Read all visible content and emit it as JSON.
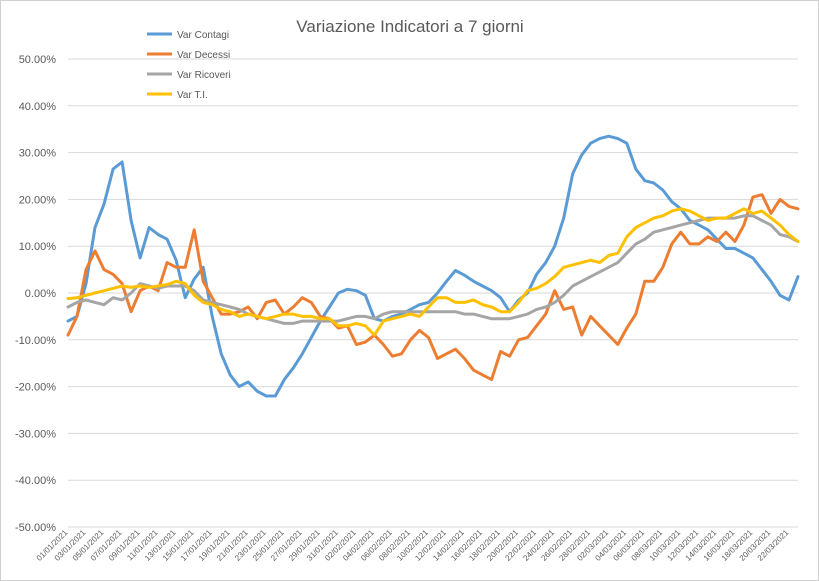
{
  "chart_data": {
    "type": "line",
    "title": "Variazione Indicatori a 7 giorni",
    "xlabel": "",
    "ylabel": "",
    "ylim": [
      -0.5,
      0.5
    ],
    "yticks": [
      0.5,
      0.4,
      0.3,
      0.2,
      0.1,
      0.0,
      -0.1,
      -0.2,
      -0.3,
      -0.4,
      -0.5
    ],
    "ytick_labels": [
      "50.00%",
      "40.00%",
      "30.00%",
      "20.00%",
      "10.00%",
      "0.00%",
      "-10.00%",
      "-20.00%",
      "-30.00%",
      "-40.00%",
      "-50.00%"
    ],
    "grid": true,
    "legend_position": "top-left",
    "x_tick_labels": [
      "01/01/2021",
      "03/01/2021",
      "05/01/2021",
      "07/01/2021",
      "09/01/2021",
      "11/01/2021",
      "13/01/2021",
      "15/01/2021",
      "17/01/2021",
      "19/01/2021",
      "21/01/2021",
      "23/01/2021",
      "25/01/2021",
      "27/01/2021",
      "29/01/2021",
      "31/01/2021",
      "02/02/2021",
      "04/02/2021",
      "06/02/2021",
      "08/02/2021",
      "10/02/2021",
      "12/02/2021",
      "14/02/2021",
      "16/02/2021",
      "18/02/2021",
      "20/02/2021",
      "22/02/2021",
      "24/02/2021",
      "26/02/2021",
      "28/02/2021",
      "02/03/2021",
      "04/03/2021",
      "06/03/2021",
      "08/03/2021",
      "10/03/2021",
      "12/03/2021",
      "14/03/2021",
      "16/03/2021",
      "18/03/2021",
      "20/03/2021",
      "22/03/2021"
    ],
    "series": [
      {
        "name": "Var Contagi",
        "color": "#5B9BD5",
        "values": [
          -0.06,
          -0.05,
          0.02,
          0.14,
          0.19,
          0.265,
          0.28,
          0.155,
          0.075,
          0.14,
          0.125,
          0.115,
          0.07,
          -0.01,
          0.03,
          0.055,
          -0.05,
          -0.13,
          -0.175,
          -0.2,
          -0.19,
          -0.21,
          -0.22,
          -0.22,
          -0.185,
          -0.16,
          -0.13,
          -0.095,
          -0.06,
          -0.03,
          0.0,
          0.008,
          0.005,
          -0.005,
          -0.055,
          -0.06,
          -0.05,
          -0.045,
          -0.035,
          -0.025,
          -0.02,
          0.0,
          0.025,
          0.048,
          0.038,
          0.025,
          0.015,
          0.005,
          -0.01,
          -0.04,
          -0.015,
          0.0,
          0.04,
          0.065,
          0.1,
          0.16,
          0.255,
          0.295,
          0.32,
          0.33,
          0.335,
          0.33,
          0.32,
          0.265,
          0.24,
          0.235,
          0.22,
          0.195,
          0.18,
          0.155,
          0.145,
          0.135,
          0.115,
          0.095,
          0.095,
          0.085,
          0.075,
          0.05,
          0.025,
          -0.005,
          -0.015,
          0.035
        ]
      },
      {
        "name": "Var Decessi",
        "color": "#ED7D31",
        "values": [
          -0.09,
          -0.05,
          0.05,
          0.09,
          0.05,
          0.04,
          0.02,
          -0.04,
          0.005,
          0.015,
          0.005,
          0.065,
          0.055,
          0.055,
          0.135,
          0.025,
          -0.01,
          -0.045,
          -0.045,
          -0.04,
          -0.03,
          -0.055,
          -0.02,
          -0.015,
          -0.045,
          -0.03,
          -0.01,
          -0.02,
          -0.05,
          -0.055,
          -0.075,
          -0.07,
          -0.11,
          -0.105,
          -0.09,
          -0.11,
          -0.135,
          -0.13,
          -0.1,
          -0.08,
          -0.095,
          -0.14,
          -0.13,
          -0.12,
          -0.14,
          -0.165,
          -0.175,
          -0.185,
          -0.125,
          -0.135,
          -0.1,
          -0.095,
          -0.07,
          -0.045,
          0.005,
          -0.035,
          -0.03,
          -0.09,
          -0.05,
          -0.07,
          -0.09,
          -0.11,
          -0.075,
          -0.045,
          0.025,
          0.025,
          0.055,
          0.105,
          0.13,
          0.105,
          0.105,
          0.12,
          0.11,
          0.13,
          0.11,
          0.145,
          0.205,
          0.21,
          0.17,
          0.2,
          0.185,
          0.18
        ]
      },
      {
        "name": "Var Ricoveri",
        "color": "#A5A5A5",
        "values": [
          -0.03,
          -0.02,
          -0.015,
          -0.02,
          -0.025,
          -0.01,
          -0.015,
          0.0,
          0.02,
          0.015,
          0.01,
          0.015,
          0.015,
          0.015,
          0.005,
          -0.015,
          -0.02,
          -0.025,
          -0.03,
          -0.035,
          -0.045,
          -0.05,
          -0.055,
          -0.06,
          -0.065,
          -0.065,
          -0.06,
          -0.06,
          -0.06,
          -0.06,
          -0.06,
          -0.055,
          -0.05,
          -0.05,
          -0.055,
          -0.045,
          -0.04,
          -0.04,
          -0.04,
          -0.04,
          -0.04,
          -0.04,
          -0.04,
          -0.04,
          -0.045,
          -0.045,
          -0.05,
          -0.055,
          -0.055,
          -0.055,
          -0.05,
          -0.045,
          -0.035,
          -0.03,
          -0.02,
          -0.005,
          0.015,
          0.025,
          0.035,
          0.045,
          0.055,
          0.065,
          0.085,
          0.105,
          0.115,
          0.13,
          0.135,
          0.14,
          0.145,
          0.15,
          0.155,
          0.16,
          0.16,
          0.16,
          0.16,
          0.165,
          0.165,
          0.155,
          0.145,
          0.125,
          0.12,
          0.11
        ]
      },
      {
        "name": "Var T.I.",
        "color": "#FFC000",
        "values": [
          -0.012,
          -0.01,
          -0.005,
          0.0,
          0.005,
          0.01,
          0.015,
          0.012,
          0.015,
          0.012,
          0.015,
          0.018,
          0.025,
          0.02,
          -0.005,
          -0.02,
          -0.025,
          -0.035,
          -0.04,
          -0.05,
          -0.045,
          -0.05,
          -0.055,
          -0.05,
          -0.045,
          -0.045,
          -0.05,
          -0.05,
          -0.055,
          -0.055,
          -0.07,
          -0.07,
          -0.065,
          -0.07,
          -0.09,
          -0.06,
          -0.055,
          -0.05,
          -0.045,
          -0.05,
          -0.03,
          -0.01,
          -0.01,
          -0.02,
          -0.02,
          -0.015,
          -0.025,
          -0.03,
          -0.04,
          -0.04,
          -0.02,
          0.005,
          0.01,
          0.02,
          0.035,
          0.055,
          0.06,
          0.065,
          0.07,
          0.065,
          0.08,
          0.085,
          0.12,
          0.14,
          0.15,
          0.16,
          0.165,
          0.175,
          0.18,
          0.175,
          0.165,
          0.155,
          0.16,
          0.16,
          0.17,
          0.18,
          0.17,
          0.175,
          0.16,
          0.145,
          0.125,
          0.11
        ]
      }
    ]
  }
}
